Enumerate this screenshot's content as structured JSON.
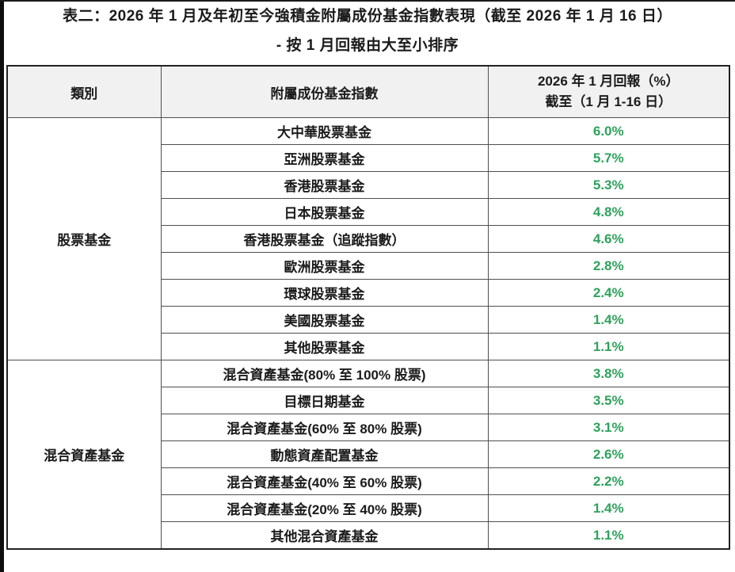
{
  "page": {
    "title_line1": "表二：2026 年 1 月及年初至今強積金附屬成份基金指數表現（截至 2026 年 1 月 16 日）",
    "title_line2": "- 按 1 月回報由大至小排序"
  },
  "table": {
    "headers": {
      "category": "類別",
      "fund_index": "附屬成份基金指數",
      "return_line1": "2026 年 1 月回報（%）",
      "return_line2": "截至（1 月 1-16 日）"
    },
    "groups": [
      {
        "category": "股票基金",
        "rows": [
          {
            "fund": "大中華股票基金",
            "return": "6.0%"
          },
          {
            "fund": "亞洲股票基金",
            "return": "5.7%"
          },
          {
            "fund": "香港股票基金",
            "return": "5.3%"
          },
          {
            "fund": "日本股票基金",
            "return": "4.8%"
          },
          {
            "fund": "香港股票基金（追蹤指數）",
            "return": "4.6%"
          },
          {
            "fund": "歐洲股票基金",
            "return": "2.8%"
          },
          {
            "fund": "環球股票基金",
            "return": "2.4%"
          },
          {
            "fund": "美國股票基金",
            "return": "1.4%"
          },
          {
            "fund": "其他股票基金",
            "return": "1.1%"
          }
        ]
      },
      {
        "category": "混合資產基金",
        "rows": [
          {
            "fund": "混合資產基金(80% 至 100% 股票)",
            "return": "3.8%"
          },
          {
            "fund": "目標日期基金",
            "return": "3.5%"
          },
          {
            "fund": "混合資產基金(60% 至 80% 股票)",
            "return": "3.1%"
          },
          {
            "fund": "動態資產配置基金",
            "return": "2.6%"
          },
          {
            "fund": "混合資產基金(40% 至 60% 股票)",
            "return": "2.2%"
          },
          {
            "fund": "混合資產基金(20% 至 40% 股票)",
            "return": "1.4%"
          },
          {
            "fund": "其他混合資產基金",
            "return": "1.1%"
          }
        ]
      }
    ]
  },
  "chart_data": {
    "type": "table",
    "title": "表二：2026 年 1 月及年初至今強積金附屬成份基金指數表現（截至 2026 年 1 月 16 日）- 按 1 月回報由大至小排序",
    "columns": [
      "類別",
      "附屬成份基金指數",
      "2026 年 1 月回報（%）截至（1 月 1-16 日）"
    ],
    "rows": [
      [
        "股票基金",
        "大中華股票基金",
        6.0
      ],
      [
        "股票基金",
        "亞洲股票基金",
        5.7
      ],
      [
        "股票基金",
        "香港股票基金",
        5.3
      ],
      [
        "股票基金",
        "日本股票基金",
        4.8
      ],
      [
        "股票基金",
        "香港股票基金（追蹤指數）",
        4.6
      ],
      [
        "股票基金",
        "歐洲股票基金",
        2.8
      ],
      [
        "股票基金",
        "環球股票基金",
        2.4
      ],
      [
        "股票基金",
        "美國股票基金",
        1.4
      ],
      [
        "股票基金",
        "其他股票基金",
        1.1
      ],
      [
        "混合資產基金",
        "混合資產基金(80% 至 100% 股票)",
        3.8
      ],
      [
        "混合資產基金",
        "目標日期基金",
        3.5
      ],
      [
        "混合資產基金",
        "混合資產基金(60% 至 80% 股票)",
        3.1
      ],
      [
        "混合資產基金",
        "動態資產配置基金",
        2.6
      ],
      [
        "混合資產基金",
        "混合資產基金(40% 至 60% 股票)",
        2.2
      ],
      [
        "混合資產基金",
        "混合資產基金(20% 至 40% 股票)",
        1.4
      ],
      [
        "混合資產基金",
        "其他混合資產基金",
        1.1
      ]
    ]
  },
  "colors": {
    "positive_return": "#2ea25c",
    "header_bg": "#f1f1f1",
    "border": "#4f4f4f",
    "text": "#1b1b1b"
  }
}
